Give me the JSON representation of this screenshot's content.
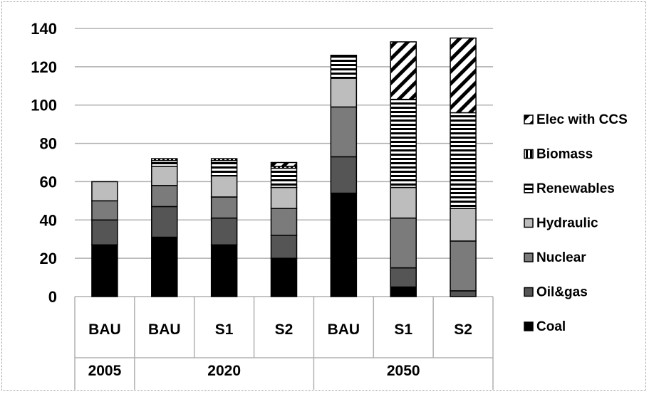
{
  "chart_data": {
    "type": "bar",
    "stacked": true,
    "title": "",
    "xlabel": "",
    "ylabel": "",
    "ylim": [
      0,
      140
    ],
    "yticks": [
      0,
      20,
      40,
      60,
      80,
      100,
      120,
      140
    ],
    "grid": true,
    "legend_position": "right",
    "category_groups": [
      {
        "label": "2005",
        "categories": [
          "BAU"
        ]
      },
      {
        "label": "2020",
        "categories": [
          "BAU",
          "S1",
          "S2"
        ]
      },
      {
        "label": "2050",
        "categories": [
          "BAU",
          "S1",
          "S2"
        ]
      }
    ],
    "categories": [
      "BAU",
      "BAU",
      "S1",
      "S2",
      "BAU",
      "S1",
      "S2"
    ],
    "series": [
      {
        "name": "Coal",
        "pattern": "solid-black",
        "values": [
          27,
          31,
          27,
          20,
          54,
          5,
          0
        ]
      },
      {
        "name": "Oil&gas",
        "pattern": "solid-dark-gray",
        "values": [
          13,
          16,
          14,
          12,
          19,
          10,
          3
        ]
      },
      {
        "name": "Nuclear",
        "pattern": "solid-gray",
        "values": [
          10,
          11,
          11,
          14,
          26,
          26,
          26
        ]
      },
      {
        "name": "Hydraulic",
        "pattern": "solid-light-gray",
        "values": [
          10,
          10,
          11,
          11,
          15,
          16,
          17
        ]
      },
      {
        "name": "Renewables",
        "pattern": "horizontal-stripes",
        "values": [
          0,
          3,
          8,
          10,
          12,
          46,
          50
        ]
      },
      {
        "name": "Biomass",
        "pattern": "vertical-stripes",
        "values": [
          0,
          1,
          1,
          1,
          0,
          0,
          0
        ]
      },
      {
        "name": "Elec with CCS",
        "pattern": "diagonal-stripes",
        "values": [
          0,
          0,
          0,
          2,
          0,
          30,
          39
        ]
      }
    ],
    "colors": {
      "Coal": "#000000",
      "Oil&gas": "#555555",
      "Nuclear": "#7b7b7b",
      "Hydraulic": "#bdbdbd",
      "Renewables": "#000000",
      "Biomass": "#000000",
      "Elec with CCS": "#000000",
      "gridline": "#b0b0b0",
      "frame": "#9a9a9a"
    }
  }
}
